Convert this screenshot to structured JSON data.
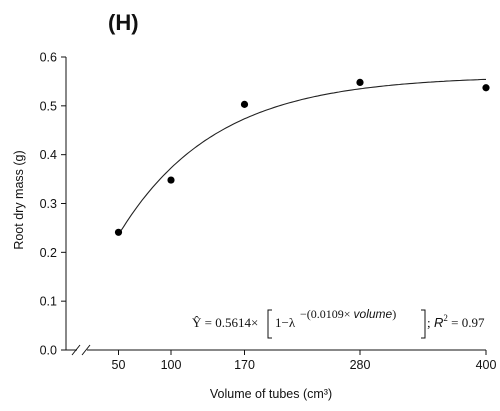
{
  "panel_label": "(H)",
  "chart_data": {
    "type": "scatter",
    "xlabel": "Volume of tubes (cm³)",
    "ylabel": "Root dry mass (g)",
    "x_ticks": [
      50,
      100,
      170,
      280,
      400
    ],
    "y_ticks": [
      "0.0",
      "0.1",
      "0.2",
      "0.3",
      "0.4",
      "0.5",
      "0.6"
    ],
    "xlim": [
      0,
      400
    ],
    "ylim": [
      0,
      0.6
    ],
    "axis_break": true,
    "grid": false,
    "points": [
      {
        "x": 50,
        "y": 0.241
      },
      {
        "x": 100,
        "y": 0.348
      },
      {
        "x": 170,
        "y": 0.503
      },
      {
        "x": 280,
        "y": 0.548
      },
      {
        "x": 400,
        "y": 0.537
      }
    ],
    "fit": {
      "a": 0.5614,
      "b": 0.0109,
      "x_start": 50,
      "x_end": 400
    },
    "equation": {
      "lhs": "Ŷ = 0.5614×",
      "open": "1−λ",
      "exp": "−(0.0109× ",
      "exp_var": "volume",
      "exp_close": ")",
      "r2_label": "R",
      "r2_sup": "2",
      "r2_value": " = 0.97"
    }
  }
}
